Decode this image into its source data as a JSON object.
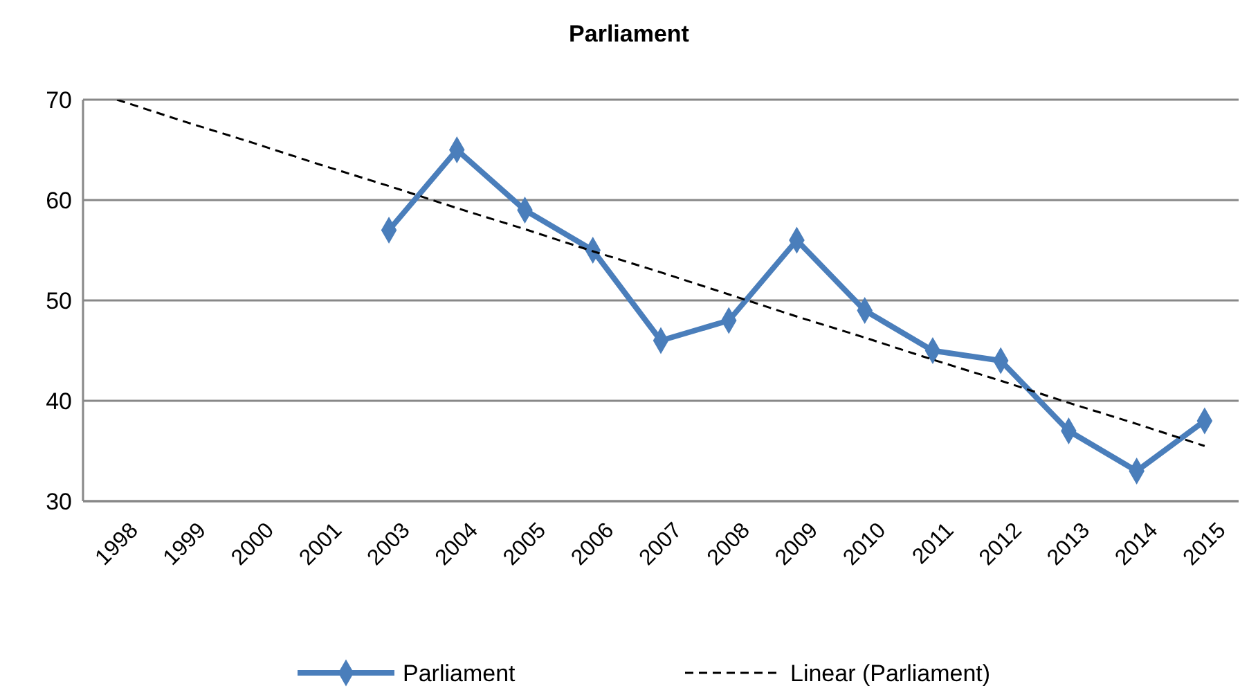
{
  "chart_data": {
    "type": "line",
    "title": "Parliament",
    "categories": [
      "1998",
      "1999",
      "2000",
      "2001",
      "2003",
      "2004",
      "2005",
      "2006",
      "2007",
      "2008",
      "2009",
      "2010",
      "2011",
      "2012",
      "2013",
      "2014",
      "2015"
    ],
    "series": [
      {
        "name": "Parliament",
        "color": "#4a7ebb",
        "marker": "diamond",
        "line_style": "solid",
        "values": [
          null,
          null,
          null,
          null,
          57,
          65,
          59,
          55,
          46,
          48,
          56,
          49,
          45,
          44,
          37,
          33,
          38
        ]
      },
      {
        "name": "Linear (Parliament)",
        "color": "#000000",
        "marker": "none",
        "line_style": "dashed",
        "values": [
          70,
          67.8,
          65.7,
          63.5,
          61.4,
          59.2,
          57.1,
          54.9,
          52.8,
          50.6,
          48.4,
          46.3,
          44.1,
          42,
          39.8,
          37.7,
          35.5
        ]
      }
    ],
    "ylim": [
      30,
      70
    ],
    "yticks": [
      30,
      40,
      50,
      60,
      70
    ],
    "grid": "y",
    "legend": "bottom"
  }
}
